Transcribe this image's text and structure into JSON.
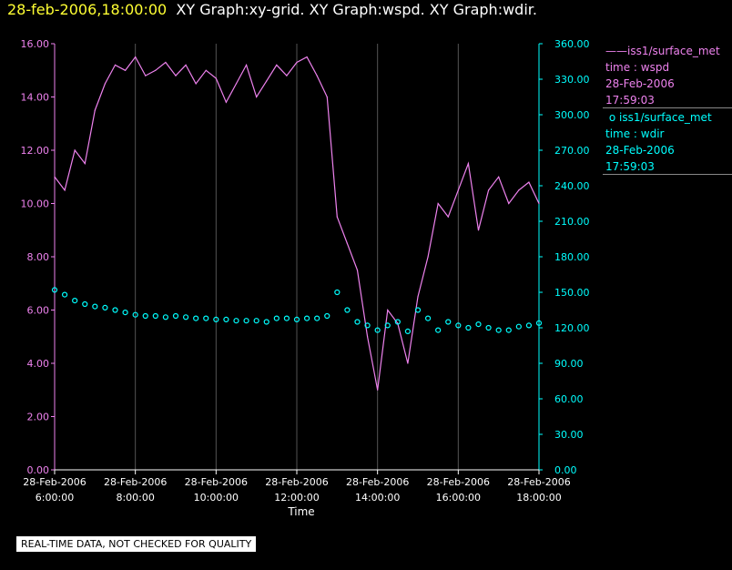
{
  "header": {
    "timestamp": "28-feb-2006,18:00:00",
    "graphs": "XY Graph:xy-grid.  XY Graph:wspd.  XY Graph:wdir."
  },
  "legend": [
    {
      "symbol": "——",
      "source": "iss1/surface_met",
      "var": "time : wspd",
      "date": "28-Feb-2006",
      "time": "17:59:03",
      "color": "#ee82ee"
    },
    {
      "symbol": "o",
      "source": "iss1/surface_met",
      "var": "time : wdir",
      "date": "28-Feb-2006",
      "time": "17:59:03",
      "color": "#00ffff"
    }
  ],
  "disclaimer": "REAL-TIME DATA, NOT CHECKED FOR QUALITY",
  "chart_data": {
    "type": "line",
    "xlabel": "Time",
    "x_ticks": [
      {
        "date": "28-Feb-2006",
        "time": "6:00:00"
      },
      {
        "date": "28-Feb-2006",
        "time": "8:00:00"
      },
      {
        "date": "28-Feb-2006",
        "time": "10:00:00"
      },
      {
        "date": "28-Feb-2006",
        "time": "12:00:00"
      },
      {
        "date": "28-Feb-2006",
        "time": "14:00:00"
      },
      {
        "date": "28-Feb-2006",
        "time": "16:00:00"
      },
      {
        "date": "28-Feb-2006",
        "time": "18:00:00"
      }
    ],
    "xlim": [
      "28-Feb-2006 06:00",
      "28-Feb-2006 18:00"
    ],
    "left_axis": {
      "ylim": [
        0,
        16
      ],
      "ticks": [
        "0.00",
        "2.00",
        "4.00",
        "6.00",
        "8.00",
        "10.00",
        "12.00",
        "14.00",
        "16.00"
      ],
      "color": "#ee82ee"
    },
    "right_axis": {
      "ylim": [
        0,
        360
      ],
      "ticks": [
        "0.00",
        "30.00",
        "60.00",
        "90.00",
        "120.00",
        "150.00",
        "180.00",
        "210.00",
        "240.00",
        "270.00",
        "300.00",
        "330.00",
        "360.00"
      ],
      "color": "#00ffff"
    },
    "grid": true,
    "series": [
      {
        "name": "iss1/surface_met time : wspd",
        "axis": "left",
        "style": "line",
        "x": [
          "06:00",
          "06:15",
          "06:30",
          "06:45",
          "07:00",
          "07:15",
          "07:30",
          "07:45",
          "08:00",
          "08:15",
          "08:30",
          "08:45",
          "09:00",
          "09:15",
          "09:30",
          "09:45",
          "10:00",
          "10:15",
          "10:30",
          "10:45",
          "11:00",
          "11:15",
          "11:30",
          "11:45",
          "12:00",
          "12:15",
          "12:30",
          "12:45",
          "13:00",
          "13:15",
          "13:30",
          "13:45",
          "14:00",
          "14:15",
          "14:30",
          "14:45",
          "15:00",
          "15:15",
          "15:30",
          "15:45",
          "16:00",
          "16:15",
          "16:30",
          "16:45",
          "17:00",
          "17:15",
          "17:30",
          "17:45",
          "18:00"
        ],
        "y": [
          11.0,
          10.5,
          12.0,
          11.5,
          13.5,
          14.5,
          15.2,
          15.0,
          15.5,
          14.8,
          15.0,
          15.3,
          14.8,
          15.2,
          14.5,
          15.0,
          14.7,
          13.8,
          14.5,
          15.2,
          14.0,
          14.6,
          15.2,
          14.8,
          15.3,
          15.5,
          14.8,
          14.0,
          9.5,
          8.5,
          7.5,
          5.0,
          3.0,
          6.0,
          5.5,
          4.0,
          6.5,
          8.0,
          10.0,
          9.5,
          10.5,
          11.5,
          9.0,
          10.5,
          11.0,
          10.0,
          10.5,
          10.8,
          10.0
        ]
      },
      {
        "name": "iss1/surface_met time : wdir",
        "axis": "right",
        "style": "marker",
        "x": [
          "06:00",
          "06:15",
          "06:30",
          "06:45",
          "07:00",
          "07:15",
          "07:30",
          "07:45",
          "08:00",
          "08:15",
          "08:30",
          "08:45",
          "09:00",
          "09:15",
          "09:30",
          "09:45",
          "10:00",
          "10:15",
          "10:30",
          "10:45",
          "11:00",
          "11:15",
          "11:30",
          "11:45",
          "12:00",
          "12:15",
          "12:30",
          "12:45",
          "13:00",
          "13:15",
          "13:30",
          "13:45",
          "14:00",
          "14:15",
          "14:30",
          "14:45",
          "15:00",
          "15:15",
          "15:30",
          "15:45",
          "16:00",
          "16:15",
          "16:30",
          "16:45",
          "17:00",
          "17:15",
          "17:30",
          "17:45",
          "18:00"
        ],
        "y": [
          152,
          148,
          143,
          140,
          138,
          137,
          135,
          133,
          131,
          130,
          130,
          129,
          130,
          129,
          128,
          128,
          127,
          127,
          126,
          126,
          126,
          125,
          128,
          128,
          127,
          128,
          128,
          130,
          150,
          135,
          125,
          122,
          118,
          122,
          125,
          117,
          135,
          128,
          118,
          125,
          122,
          120,
          123,
          120,
          118,
          118,
          121,
          122,
          124
        ]
      }
    ]
  }
}
